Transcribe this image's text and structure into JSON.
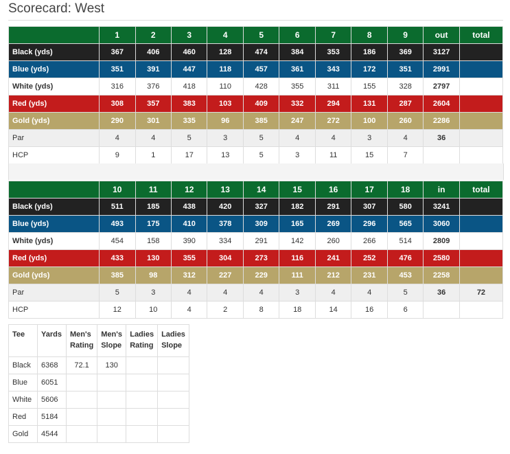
{
  "title": "Scorecard: West",
  "front": {
    "headers": [
      "",
      "1",
      "2",
      "3",
      "4",
      "5",
      "6",
      "7",
      "8",
      "9",
      "out",
      "total"
    ],
    "rows": [
      {
        "cls": "black",
        "cells": [
          "Black (yds)",
          "367",
          "406",
          "460",
          "128",
          "474",
          "384",
          "353",
          "186",
          "369",
          "3127",
          ""
        ]
      },
      {
        "cls": "blue",
        "cells": [
          "Blue (yds)",
          "351",
          "391",
          "447",
          "118",
          "457",
          "361",
          "343",
          "172",
          "351",
          "2991",
          ""
        ]
      },
      {
        "cls": "white",
        "cells": [
          "White (yds)",
          "316",
          "376",
          "418",
          "110",
          "428",
          "355",
          "311",
          "155",
          "328",
          "2797",
          ""
        ]
      },
      {
        "cls": "red",
        "cells": [
          "Red (yds)",
          "308",
          "357",
          "383",
          "103",
          "409",
          "332",
          "294",
          "131",
          "287",
          "2604",
          ""
        ]
      },
      {
        "cls": "gold",
        "cells": [
          "Gold (yds)",
          "290",
          "301",
          "335",
          "96",
          "385",
          "247",
          "272",
          "100",
          "260",
          "2286",
          ""
        ]
      },
      {
        "cls": "par",
        "cells": [
          "Par",
          "4",
          "4",
          "5",
          "3",
          "5",
          "4",
          "4",
          "3",
          "4",
          "36",
          ""
        ]
      },
      {
        "cls": "hcp",
        "cells": [
          "HCP",
          "9",
          "1",
          "17",
          "13",
          "5",
          "3",
          "11",
          "15",
          "7",
          "",
          ""
        ]
      }
    ]
  },
  "back": {
    "headers": [
      "",
      "10",
      "11",
      "12",
      "13",
      "14",
      "15",
      "16",
      "17",
      "18",
      "in",
      "total"
    ],
    "rows": [
      {
        "cls": "black",
        "cells": [
          "Black (yds)",
          "511",
          "185",
          "438",
          "420",
          "327",
          "182",
          "291",
          "307",
          "580",
          "3241",
          ""
        ]
      },
      {
        "cls": "blue",
        "cells": [
          "Blue (yds)",
          "493",
          "175",
          "410",
          "378",
          "309",
          "165",
          "269",
          "296",
          "565",
          "3060",
          ""
        ]
      },
      {
        "cls": "white",
        "cells": [
          "White (yds)",
          "454",
          "158",
          "390",
          "334",
          "291",
          "142",
          "260",
          "266",
          "514",
          "2809",
          ""
        ]
      },
      {
        "cls": "red",
        "cells": [
          "Red (yds)",
          "433",
          "130",
          "355",
          "304",
          "273",
          "116",
          "241",
          "252",
          "476",
          "2580",
          ""
        ]
      },
      {
        "cls": "gold",
        "cells": [
          "Gold (yds)",
          "385",
          "98",
          "312",
          "227",
          "229",
          "111",
          "212",
          "231",
          "453",
          "2258",
          ""
        ]
      },
      {
        "cls": "par",
        "cells": [
          "Par",
          "5",
          "3",
          "4",
          "4",
          "4",
          "3",
          "4",
          "4",
          "5",
          "36",
          "72"
        ]
      },
      {
        "cls": "hcp",
        "cells": [
          "HCP",
          "12",
          "10",
          "4",
          "2",
          "8",
          "18",
          "14",
          "16",
          "6",
          "",
          ""
        ]
      }
    ]
  },
  "tees": {
    "headers": [
      "Tee",
      "Yards",
      "Men's Rating",
      "Men's Slope",
      "Ladies Rating",
      "Ladies Slope"
    ],
    "rows": [
      [
        "Black",
        "6368",
        "72.1",
        "130",
        "",
        ""
      ],
      [
        "Blue",
        "6051",
        "",
        "",
        "",
        ""
      ],
      [
        "White",
        "5606",
        "",
        "",
        "",
        ""
      ],
      [
        "Red",
        "5184",
        "",
        "",
        "",
        ""
      ],
      [
        "Gold",
        "4544",
        "",
        "",
        "",
        ""
      ]
    ]
  },
  "colors": {
    "header_green": "#0b6b2e",
    "black_tee": "#222222",
    "blue_tee": "#0a5585",
    "red_tee": "#c31c1c",
    "gold_tee": "#b7a56a",
    "par_row": "#efefef"
  }
}
